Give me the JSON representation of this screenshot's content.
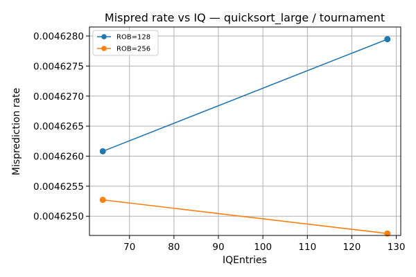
{
  "chart_data": {
    "type": "line",
    "title": "Mispred rate vs IQ — quicksort_large / tournament",
    "xlabel": "IQEntries",
    "ylabel": "Misprediction rate",
    "xlim": [
      61,
      131
    ],
    "ylim": [
      0.00462468,
      0.00462815
    ],
    "xticks": [
      70,
      80,
      90,
      100,
      110,
      120,
      130
    ],
    "yticks": [
      0.004625,
      0.0046255,
      0.004626,
      0.0046265,
      0.004627,
      0.0046275,
      0.004628
    ],
    "ytick_decimals": 7,
    "grid": true,
    "legend_position": "top-left",
    "series": [
      {
        "name": "ROB=128",
        "color": "#1f77b4",
        "x": [
          64,
          128
        ],
        "y": [
          0.0046260814,
          0.0046279474
        ]
      },
      {
        "name": "ROB=256",
        "color": "#ff7f0e",
        "x": [
          64,
          128
        ],
        "y": [
          0.0046252723,
          0.0046247124
        ]
      }
    ]
  }
}
